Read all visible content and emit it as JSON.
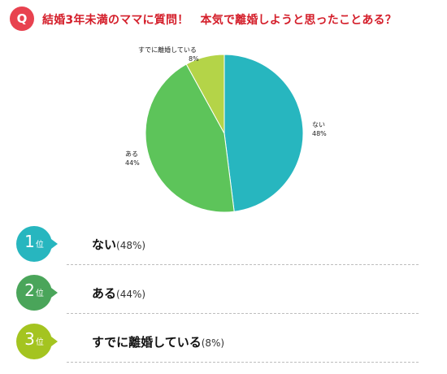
{
  "header": {
    "q_label": "Q",
    "title": "結婚3年未満のママに質問！　本気で離婚しようと思ったことある？"
  },
  "chart_data": {
    "type": "pie",
    "slices": [
      {
        "label": "ない",
        "value": 48,
        "value_label": "48%",
        "color": "#27b6bf"
      },
      {
        "label": "ある",
        "value": 44,
        "value_label": "44%",
        "color": "#5dc45a"
      },
      {
        "label": "すでに離婚している",
        "value": 8,
        "value_label": "8%",
        "color": "#b4d448"
      }
    ]
  },
  "ranking": [
    {
      "rank": "1",
      "suffix": "位",
      "label": "ない",
      "pct": "(48%)",
      "color": "#27b6bf"
    },
    {
      "rank": "2",
      "suffix": "位",
      "label": "ある",
      "pct": "(44%)",
      "color": "#4aa55a"
    },
    {
      "rank": "3",
      "suffix": "位",
      "label": "すでに離婚している",
      "pct": "(8%)",
      "color": "#a4c420"
    }
  ]
}
